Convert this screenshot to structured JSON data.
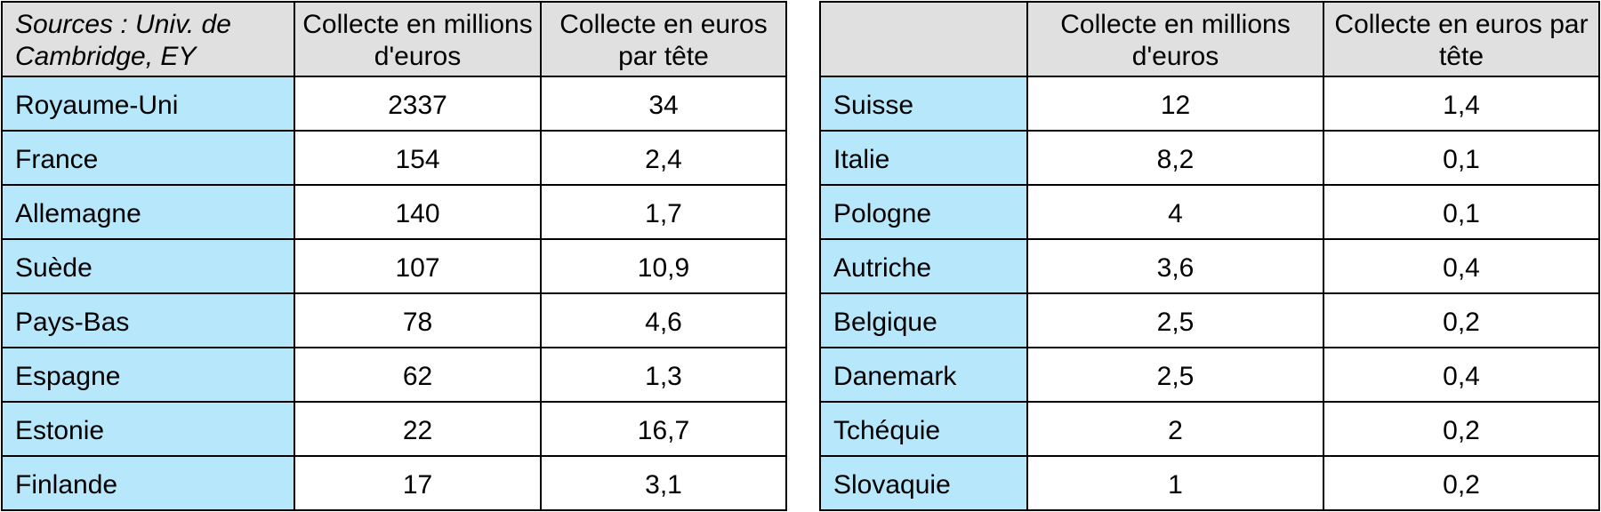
{
  "tables": [
    {
      "note": "Sources : Univ. de Cambridge, EY",
      "columns": [
        "Collecte en millions d'euros",
        "Collecte en euros par tête"
      ],
      "rows": [
        [
          "Royaume-Uni",
          "2337",
          "34"
        ],
        [
          "France",
          "154",
          "2,4"
        ],
        [
          "Allemagne",
          "140",
          "1,7"
        ],
        [
          "Suède",
          "107",
          "10,9"
        ],
        [
          "Pays-Bas",
          "78",
          "4,6"
        ],
        [
          "Espagne",
          "62",
          "1,3"
        ],
        [
          "Estonie",
          "22",
          "16,7"
        ],
        [
          "Finlande",
          "17",
          "3,1"
        ]
      ]
    },
    {
      "columns": [
        "Collecte en millions d'euros",
        "Collecte en euros par tête"
      ],
      "rows": [
        [
          "Suisse",
          "12",
          "1,4"
        ],
        [
          "Italie",
          "8,2",
          "0,1"
        ],
        [
          "Pologne",
          "4",
          "0,1"
        ],
        [
          "Autriche",
          "3,6",
          "0,4"
        ],
        [
          "Belgique",
          "2,5",
          "0,2"
        ],
        [
          "Danemark",
          "2,5",
          "0,4"
        ],
        [
          "Tchéquie",
          "2",
          "0,2"
        ],
        [
          "Slovaquie",
          "1",
          "0,2"
        ]
      ]
    }
  ]
}
